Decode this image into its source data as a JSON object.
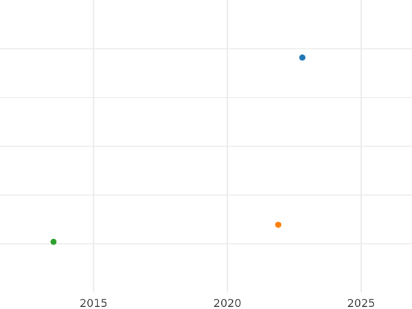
{
  "chart_data": {
    "type": "scatter",
    "title": "",
    "xlabel": "",
    "ylabel": "",
    "xlim": [
      2011.5,
      2026.9
    ],
    "ylim": [
      -1,
      5
    ],
    "x_ticks": [
      2015,
      2020,
      2025
    ],
    "x_tick_labels": [
      "2015",
      "2020",
      "2025"
    ],
    "y_gridlines": [
      0,
      1,
      2,
      3,
      4
    ],
    "y_tick_labels_shown": false,
    "grid": true,
    "legend": "none",
    "points": [
      {
        "x": 2022.8,
        "y": 3.82,
        "color": "#1f77b4"
      },
      {
        "x": 2021.9,
        "y": 0.39,
        "color": "#ff7f0e"
      },
      {
        "x": 2013.5,
        "y": 0.04,
        "color": "#2ca02c"
      }
    ]
  }
}
